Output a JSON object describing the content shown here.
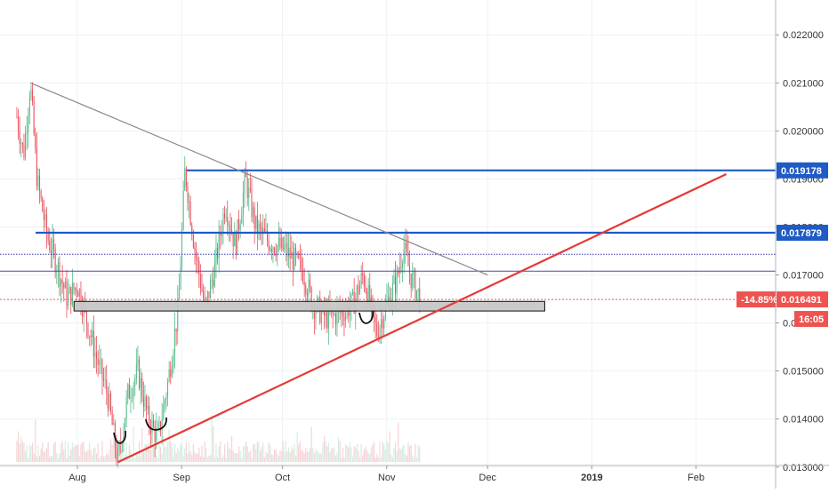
{
  "chart_data": {
    "type": "candlestick",
    "x_tick_labels": [
      "Aug",
      "Sep",
      "Oct",
      "Nov",
      "Dec",
      "2019",
      "Feb"
    ],
    "y_tick_labels": [
      "0.022000",
      "0.021000",
      "0.020000",
      "0.019000",
      "0.018000",
      "0.017000",
      "0.016000",
      "0.015000",
      "0.014000",
      "0.013000"
    ],
    "ylim": [
      0.0128,
      0.0228
    ],
    "price_path": [
      {
        "x": "2018-07-14",
        "y": 0.0203
      },
      {
        "x": "2018-07-16",
        "y": 0.0195
      },
      {
        "x": "2018-07-18",
        "y": 0.021
      },
      {
        "x": "2018-07-20",
        "y": 0.019
      },
      {
        "x": "2018-07-23",
        "y": 0.0178
      },
      {
        "x": "2018-07-26",
        "y": 0.0172
      },
      {
        "x": "2018-07-29",
        "y": 0.0165
      },
      {
        "x": "2018-08-01",
        "y": 0.0168
      },
      {
        "x": "2018-08-04",
        "y": 0.016
      },
      {
        "x": "2018-08-07",
        "y": 0.0152
      },
      {
        "x": "2018-08-10",
        "y": 0.0145
      },
      {
        "x": "2018-08-13",
        "y": 0.0131
      },
      {
        "x": "2018-08-16",
        "y": 0.0145
      },
      {
        "x": "2018-08-19",
        "y": 0.015
      },
      {
        "x": "2018-08-22",
        "y": 0.014
      },
      {
        "x": "2018-08-25",
        "y": 0.0136
      },
      {
        "x": "2018-08-28",
        "y": 0.0148
      },
      {
        "x": "2018-08-31",
        "y": 0.0163
      },
      {
        "x": "2018-09-02",
        "y": 0.0192
      },
      {
        "x": "2018-09-05",
        "y": 0.0175
      },
      {
        "x": "2018-09-08",
        "y": 0.0163
      },
      {
        "x": "2018-09-11",
        "y": 0.0172
      },
      {
        "x": "2018-09-14",
        "y": 0.0185
      },
      {
        "x": "2018-09-17",
        "y": 0.0176
      },
      {
        "x": "2018-09-20",
        "y": 0.019
      },
      {
        "x": "2018-09-23",
        "y": 0.018
      },
      {
        "x": "2018-09-27",
        "y": 0.0177
      },
      {
        "x": "2018-10-02",
        "y": 0.0175
      },
      {
        "x": "2018-10-07",
        "y": 0.0171
      },
      {
        "x": "2018-10-10",
        "y": 0.0164
      },
      {
        "x": "2018-10-14",
        "y": 0.0161
      },
      {
        "x": "2018-10-18",
        "y": 0.0162
      },
      {
        "x": "2018-10-22",
        "y": 0.0164
      },
      {
        "x": "2018-10-25",
        "y": 0.017
      },
      {
        "x": "2018-10-29",
        "y": 0.0158
      },
      {
        "x": "2018-11-01",
        "y": 0.0164
      },
      {
        "x": "2018-11-04",
        "y": 0.0169
      },
      {
        "x": "2018-11-06",
        "y": 0.0176
      },
      {
        "x": "2018-11-08",
        "y": 0.017
      },
      {
        "x": "2018-11-11",
        "y": 0.0165
      }
    ],
    "annotations": {
      "descending_trendline": {
        "from": {
          "x": "2018-07-18",
          "y": 0.021
        },
        "to": {
          "x": "2018-12-01",
          "y": 0.017
        },
        "color": "#888888"
      },
      "ascending_trendline": {
        "from": {
          "x": "2018-08-13",
          "y": 0.0131
        },
        "to": {
          "x": "2019-02-10",
          "y": 0.0191
        },
        "color": "#e53935"
      },
      "resistance_line_1": {
        "y": 0.019178,
        "label": "0.019178",
        "color": "#1e5bc6"
      },
      "resistance_line_2": {
        "y": 0.017879,
        "label": "0.017879",
        "color": "#1e5bc6"
      },
      "dotted_line": {
        "y": 0.01743,
        "color": "#3333aa"
      },
      "solid_thin_line": {
        "y": 0.01708,
        "color": "#4a4aa8"
      },
      "support_box": {
        "x_start": "2018-07-31",
        "x_end": "2018-12-18",
        "y_top": 0.01645,
        "y_bottom": 0.01625,
        "color": "#c8c8c8"
      },
      "current_price": {
        "y": 0.016491,
        "label": "0.016491",
        "change_label": "-14.85%",
        "time_label": "16:05",
        "color": "#ef5350"
      }
    },
    "grid": true
  }
}
